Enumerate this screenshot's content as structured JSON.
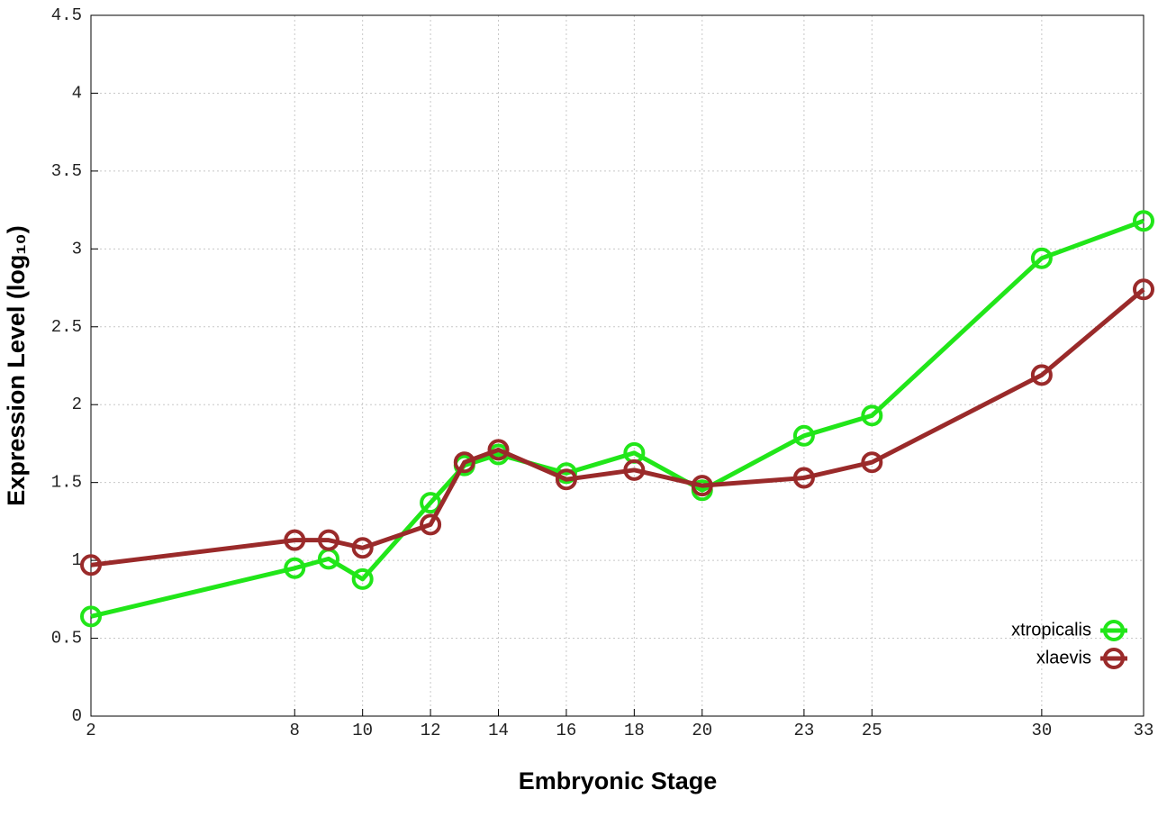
{
  "chart_data": {
    "type": "line",
    "xlabel": "Embryonic Stage",
    "ylabel": "Expression Level (log₁₀)",
    "x": [
      2,
      8,
      9,
      10,
      12,
      13,
      14,
      16,
      18,
      20,
      23,
      25,
      30,
      33
    ],
    "series": [
      {
        "name": "xtropicalis",
        "color": "#21e619",
        "values": [
          0.64,
          0.95,
          1.01,
          0.88,
          1.37,
          1.61,
          1.68,
          1.56,
          1.69,
          1.45,
          1.8,
          1.93,
          2.94,
          3.18
        ]
      },
      {
        "name": "xlaevis",
        "color": "#9a2a2a",
        "values": [
          0.97,
          1.13,
          1.13,
          1.08,
          1.23,
          1.63,
          1.71,
          1.52,
          1.58,
          1.48,
          1.53,
          1.63,
          2.19,
          2.74
        ]
      }
    ],
    "xlim": [
      2,
      33
    ],
    "xticks": [
      2,
      8,
      10,
      12,
      14,
      16,
      18,
      20,
      23,
      25,
      30,
      33
    ],
    "ylim": [
      0,
      4.5
    ],
    "yticks": [
      0,
      0.5,
      1,
      1.5,
      2,
      2.5,
      3,
      3.5,
      4,
      4.5
    ],
    "grid": true,
    "legend": "lower right"
  }
}
